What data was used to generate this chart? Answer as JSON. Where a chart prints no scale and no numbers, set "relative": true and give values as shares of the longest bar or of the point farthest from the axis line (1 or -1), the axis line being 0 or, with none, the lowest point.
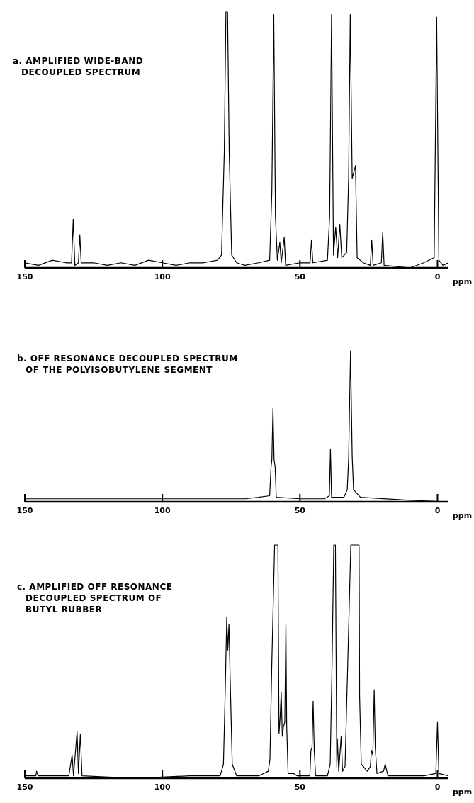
{
  "chart_data": [
    {
      "type": "line",
      "title": "a. AMPLIFIED WIDE-BAND\nDECOUPLED SPECTRUM",
      "xlabel": "ppm",
      "relative": true,
      "xlim": [
        150,
        -4
      ],
      "xticks": [
        150,
        100,
        50,
        0
      ],
      "color": "#000000",
      "x": [
        150,
        145,
        140,
        135,
        133,
        132.4,
        131.8,
        130.5,
        130.0,
        129.5,
        125,
        120,
        115,
        110,
        105,
        100,
        95,
        90,
        85,
        80,
        78.5,
        77.5,
        76.9,
        76.3,
        75.7,
        74.8,
        73,
        70,
        65,
        61,
        60.2,
        59.5,
        58.9,
        58.2,
        57.3,
        56.8,
        55.7,
        55.2,
        50,
        46.3,
        45.8,
        45.3,
        40,
        39.2,
        38.5,
        37.8,
        37.0,
        36.3,
        35.5,
        34.8,
        33,
        32.3,
        31.7,
        31.0,
        29.8,
        29.2,
        27,
        24.4,
        23.9,
        23.4,
        20.4,
        19.9,
        19.4,
        10,
        5,
        1.2,
        0.3,
        -0.5,
        -2,
        -4
      ],
      "values": [
        0.02,
        0.01,
        0.03,
        0.02,
        0.02,
        0.19,
        0.01,
        0.02,
        0.13,
        0.02,
        0.02,
        0.01,
        0.02,
        0.01,
        0.03,
        0.02,
        0.01,
        0.02,
        0.02,
        0.03,
        0.05,
        0.45,
        1,
        1,
        0.45,
        0.05,
        0.02,
        0.01,
        0.02,
        0.03,
        0.3,
        0.99,
        0.2,
        0.03,
        0.1,
        0.02,
        0.12,
        0.01,
        0.02,
        0.02,
        0.11,
        0.02,
        0.03,
        0.2,
        0.99,
        0.05,
        0.16,
        0.04,
        0.17,
        0.04,
        0.06,
        0.35,
        0.99,
        0.35,
        0.4,
        0.04,
        0.02,
        0.01,
        0.11,
        0.01,
        0.02,
        0.14,
        0.01,
        0,
        0.02,
        0.04,
        0.98,
        0.03,
        0.01,
        0.02
      ]
    },
    {
      "type": "line",
      "title": "b. OFF RESONANCE DECOUPLED SPECTRUM\nOF THE POLYISOBUTYLENE SEGMENT",
      "xlabel": "ppm",
      "relative": true,
      "xlim": [
        150,
        -4
      ],
      "xticks": [
        150,
        100,
        50,
        0
      ],
      "color": "#000000",
      "x": [
        150,
        100,
        70,
        65,
        61,
        60.5,
        60.2,
        59.8,
        59.4,
        59,
        58.6,
        50,
        41,
        39.3,
        38.9,
        38.5,
        34,
        32.8,
        32.3,
        31.6,
        31.0,
        30.5,
        28,
        10,
        -4
      ],
      "values": [
        0.02,
        0.02,
        0.02,
        0.03,
        0.04,
        0.23,
        0.28,
        0.62,
        0.28,
        0.23,
        0.03,
        0.02,
        0.02,
        0.04,
        0.35,
        0.03,
        0.03,
        0.08,
        0.28,
        1,
        0.3,
        0.08,
        0.03,
        0.01,
        0
      ]
    },
    {
      "type": "line",
      "title": "c. AMPLIFIED OFF RESONANCE\nDECOUPLED SPECTRUM OF\nBUTYL RUBBER",
      "xlabel": "ppm",
      "relative": true,
      "xlim": [
        150,
        -4
      ],
      "xticks": [
        150,
        100,
        50,
        0
      ],
      "color": "#000000",
      "x": [
        150,
        146,
        145.7,
        145.2,
        140,
        134,
        132.8,
        132.3,
        131.0,
        130.5,
        129.8,
        129.2,
        110,
        90,
        79,
        77.8,
        77.1,
        76.6,
        76.2,
        75.8,
        75.3,
        74.6,
        73,
        65,
        61.5,
        60.9,
        60.2,
        59.2,
        58.0,
        57.6,
        57.2,
        56.8,
        56.4,
        56.0,
        55.5,
        55.1,
        54.8,
        54.3,
        52.2,
        51,
        46.4,
        46.0,
        45.6,
        45.2,
        44.8,
        44.3,
        40,
        39.0,
        38.3,
        37.7,
        37.1,
        36.6,
        36.4,
        35.9,
        35.0,
        34.5,
        33.6,
        32.6,
        31.5,
        29.1,
        28.5,
        28.3,
        27.7,
        25.5,
        24.4,
        24.0,
        23.5,
        23.0,
        22.6,
        22.0,
        19.6,
        19.0,
        18.6,
        18,
        5,
        0.6,
        0.0,
        -0.5,
        -4
      ],
      "values": [
        0.01,
        0.01,
        0.03,
        0.01,
        0.01,
        0.01,
        0.1,
        0.01,
        0.2,
        0.02,
        0.19,
        0.01,
        0,
        0.01,
        0.01,
        0.06,
        0.4,
        0.69,
        0.55,
        0.66,
        0.4,
        0.06,
        0.01,
        0.01,
        0.03,
        0.08,
        0.5,
        1,
        1,
        0.19,
        0.26,
        0.37,
        0.18,
        0.22,
        0.24,
        0.66,
        0.22,
        0.02,
        0.02,
        0.01,
        0.01,
        0.12,
        0.13,
        0.33,
        0.12,
        0.01,
        0.01,
        0.06,
        0.5,
        1,
        1,
        0.05,
        0.17,
        0.03,
        0.18,
        0.03,
        0.05,
        0.5,
        1,
        1,
        1,
        0.35,
        0.06,
        0.03,
        0.05,
        0.12,
        0.1,
        0.38,
        0.13,
        0.02,
        0.03,
        0.06,
        0.04,
        0.01,
        0.01,
        0.02,
        0.24,
        0.02,
        0.01
      ]
    }
  ]
}
